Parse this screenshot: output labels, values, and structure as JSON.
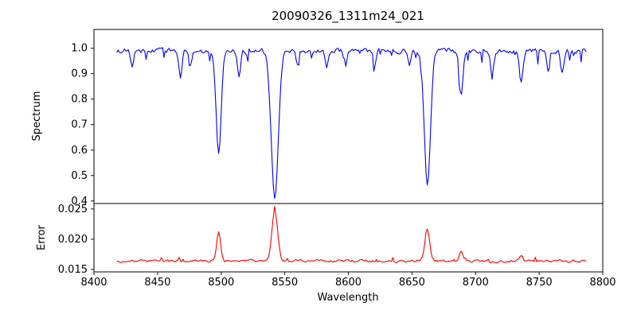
{
  "figure": {
    "title": "20090326_1311m24_021",
    "xlabel": "Wavelength",
    "background": "#ffffff",
    "axis_color": "#000000",
    "xlim": [
      8400,
      8800
    ],
    "xticks": [
      8400,
      8450,
      8500,
      8550,
      8600,
      8650,
      8700,
      8750,
      8800
    ],
    "xtick_labels": [
      "8400",
      "8450",
      "8500",
      "8550",
      "8600",
      "8650",
      "8700",
      "8750",
      "8800"
    ]
  },
  "chart_data": [
    {
      "type": "line",
      "name": "spectrum",
      "ylabel": "Spectrum",
      "color": "#0000ff",
      "ylim": [
        0.39,
        1.074
      ],
      "yticks": [
        0.4,
        0.5,
        0.6,
        0.7,
        0.8,
        0.9,
        1.0
      ],
      "ytick_labels": [
        "0.4",
        "0.5",
        "0.6",
        "0.7",
        "0.8",
        "0.9",
        "1.0"
      ],
      "x_start": 8418,
      "x_end": 8787,
      "x_step": 1,
      "continuum": 0.99,
      "noise_amplitude": 0.016,
      "spike_probability": 0.07,
      "spike_depth": 0.05,
      "clip_max": 1.045,
      "seed": 1234,
      "absorption_lines": [
        {
          "center": 8498.0,
          "depth": 0.4,
          "width": 2.0
        },
        {
          "center": 8542.1,
          "depth": 0.58,
          "width": 2.8
        },
        {
          "center": 8662.1,
          "depth": 0.52,
          "width": 2.4
        },
        {
          "center": 8688.6,
          "depth": 0.17,
          "width": 1.4
        },
        {
          "center": 8430.0,
          "depth": 0.07,
          "width": 1.2
        },
        {
          "center": 8468.0,
          "depth": 0.1,
          "width": 1.3
        },
        {
          "center": 8476.0,
          "depth": 0.06,
          "width": 1.0
        },
        {
          "center": 8514.0,
          "depth": 0.1,
          "width": 1.2
        },
        {
          "center": 8560.0,
          "depth": 0.05,
          "width": 1.0
        },
        {
          "center": 8583.0,
          "depth": 0.07,
          "width": 1.2
        },
        {
          "center": 8598.0,
          "depth": 0.06,
          "width": 1.0
        },
        {
          "center": 8621.0,
          "depth": 0.06,
          "width": 1.0
        },
        {
          "center": 8648.0,
          "depth": 0.06,
          "width": 1.0
        },
        {
          "center": 8713.0,
          "depth": 0.09,
          "width": 1.3
        },
        {
          "center": 8736.0,
          "depth": 0.12,
          "width": 1.4
        },
        {
          "center": 8757.0,
          "depth": 0.07,
          "width": 1.0
        },
        {
          "center": 8768.0,
          "depth": 0.08,
          "width": 1.2
        }
      ]
    },
    {
      "type": "line",
      "name": "error",
      "ylabel": "Error",
      "color": "#ff0000",
      "ylim": [
        0.0146,
        0.0259
      ],
      "yticks": [
        0.015,
        0.02,
        0.025
      ],
      "ytick_labels": [
        "0.015",
        "0.020",
        "0.025"
      ],
      "x_start": 8418,
      "x_end": 8787,
      "x_step": 1,
      "baseline": 0.0164,
      "noise_amplitude": 0.00035,
      "spike_probability": 0.05,
      "spike_height": 0.0007,
      "seed": 99,
      "peaks": [
        {
          "center": 8498.0,
          "amp": 0.0048,
          "width": 1.6
        },
        {
          "center": 8542.1,
          "amp": 0.0086,
          "width": 2.2
        },
        {
          "center": 8662.1,
          "amp": 0.0053,
          "width": 1.8
        },
        {
          "center": 8688.6,
          "amp": 0.0016,
          "width": 1.3
        },
        {
          "center": 8736.0,
          "amp": 0.0009,
          "width": 1.2
        }
      ]
    }
  ]
}
